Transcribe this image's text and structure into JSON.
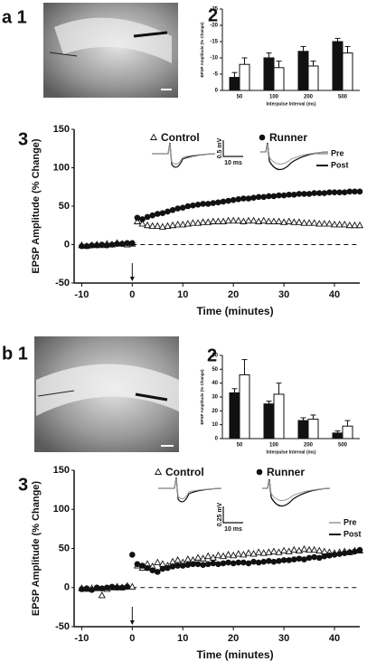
{
  "photos": [
    {
      "label": "a 1"
    },
    {
      "label": "b 1"
    }
  ],
  "chart_data": [
    {
      "type": "bar",
      "panel_label": "2",
      "ylabel": "EPSP Amplitude (% Change)",
      "xlabel": "Interpulse Interval (ms)",
      "categories": [
        "50",
        "100",
        "200",
        "500"
      ],
      "ylim": [
        0,
        -25
      ],
      "yticks": [
        -25,
        -20,
        -15,
        -10,
        -5,
        0
      ],
      "series": [
        {
          "color": "#111111",
          "values": [
            -4,
            -10,
            -12,
            -15
          ],
          "errors": [
            1.5,
            1.5,
            1.5,
            1
          ]
        },
        {
          "color": "#ffffff",
          "values": [
            -8,
            -7,
            -7.5,
            -11.5
          ],
          "errors": [
            2,
            2,
            1.5,
            2
          ]
        }
      ]
    },
    {
      "type": "scatter",
      "panel_label": "3",
      "ylabel": "EPSP Amplitude (% Change)",
      "xlabel": "Time (minutes)",
      "xlim": [
        -11.5,
        45
      ],
      "xticks": [
        -10,
        0,
        10,
        20,
        30,
        40
      ],
      "ylim": [
        -50,
        150
      ],
      "yticks": [
        -50,
        0,
        50,
        100,
        150
      ],
      "hline": 0,
      "arrow_x": 0,
      "inset": {
        "pre": "Pre",
        "post": "Post",
        "scale_y": "0.5 mV",
        "scale_x": "10 ms"
      },
      "x": [
        -10,
        -9,
        -8,
        -7,
        -6,
        -5,
        -4,
        -3,
        -2,
        -1,
        0,
        1,
        2,
        3,
        4,
        5,
        6,
        7,
        8,
        9,
        10,
        11,
        12,
        13,
        14,
        15,
        16,
        17,
        18,
        19,
        20,
        21,
        22,
        23,
        24,
        25,
        26,
        27,
        28,
        29,
        30,
        31,
        32,
        33,
        34,
        35,
        36,
        37,
        38,
        39,
        40,
        41,
        42,
        43,
        44,
        45
      ],
      "series": [
        {
          "name": "Control",
          "marker": "triangle-open",
          "color": "#111111",
          "values": [
            -1,
            -2,
            -1,
            0,
            -1,
            1,
            0,
            2,
            1,
            0,
            1,
            30,
            27,
            25,
            24,
            24,
            23,
            24,
            25,
            26,
            26,
            27,
            28,
            28,
            29,
            29,
            30,
            30,
            30,
            31,
            31,
            31,
            30,
            31,
            31,
            30,
            31,
            30,
            30,
            30,
            29,
            30,
            29,
            29,
            28,
            28,
            28,
            27,
            27,
            27,
            26,
            26,
            26,
            25,
            25,
            25
          ]
        },
        {
          "name": "Runner",
          "marker": "circle",
          "color": "#111111",
          "values": [
            -2,
            -2,
            -1,
            -1,
            0,
            -1,
            0,
            1,
            1,
            2,
            2,
            35,
            33,
            36,
            38,
            40,
            41,
            43,
            45,
            47,
            48,
            50,
            51,
            52,
            53,
            53,
            54,
            55,
            56,
            57,
            58,
            59,
            60,
            60,
            61,
            62,
            62,
            63,
            63,
            64,
            64,
            65,
            65,
            66,
            66,
            66,
            67,
            67,
            67,
            68,
            68,
            68,
            68,
            69,
            69,
            69
          ]
        }
      ]
    },
    {
      "type": "bar",
      "panel_label": "2",
      "ylabel": "EPSP Amplitude (% Change)",
      "xlabel": "Interpulse Interval (ms)",
      "categories": [
        "50",
        "100",
        "200",
        "500"
      ],
      "ylim": [
        0,
        60
      ],
      "yticks": [
        0,
        10,
        20,
        30,
        40,
        50,
        60
      ],
      "series": [
        {
          "color": "#111111",
          "values": [
            33,
            25,
            13,
            4
          ],
          "errors": [
            3,
            2,
            2,
            1.5
          ]
        },
        {
          "color": "#ffffff",
          "values": [
            46,
            32,
            14,
            9
          ],
          "errors": [
            11,
            8,
            3,
            4
          ]
        }
      ]
    },
    {
      "type": "scatter",
      "panel_label": "3",
      "ylabel": "EPSP Amplitude (% Change)",
      "xlabel": "Time (minutes)",
      "xlim": [
        -11.5,
        45
      ],
      "xticks": [
        -10,
        0,
        10,
        20,
        30,
        40
      ],
      "ylim": [
        -50,
        150
      ],
      "yticks": [
        -50,
        0,
        50,
        100,
        150
      ],
      "hline": 0,
      "arrow_x": 0,
      "inset": {
        "pre": "Pre",
        "post": "Post",
        "scale_y": "0.25 mV",
        "scale_x": "10 ms"
      },
      "x": [
        -10,
        -9,
        -8,
        -7,
        -6,
        -5,
        -4,
        -3,
        -2,
        -1,
        0,
        1,
        2,
        3,
        4,
        5,
        6,
        7,
        8,
        9,
        10,
        11,
        12,
        13,
        14,
        15,
        16,
        17,
        18,
        19,
        20,
        21,
        22,
        23,
        24,
        25,
        26,
        27,
        28,
        29,
        30,
        31,
        32,
        33,
        34,
        35,
        36,
        37,
        38,
        39,
        40,
        41,
        42,
        43,
        44,
        45
      ],
      "series": [
        {
          "name": "Control",
          "marker": "triangle-open",
          "color": "#111111",
          "values": [
            -1,
            -2,
            -1,
            -1,
            -10,
            -2,
            0,
            1,
            0,
            2,
            1,
            28,
            25,
            30,
            27,
            32,
            30,
            28,
            33,
            35,
            32,
            36,
            35,
            38,
            37,
            40,
            38,
            41,
            40,
            42,
            41,
            43,
            42,
            44,
            43,
            45,
            44,
            45,
            46,
            45,
            47,
            46,
            48,
            47,
            49,
            48,
            48,
            47,
            46,
            45,
            44,
            45,
            46,
            45,
            47,
            47
          ]
        },
        {
          "name": "Runner",
          "marker": "circle",
          "color": "#111111",
          "values": [
            -2,
            -1,
            -3,
            0,
            -1,
            0,
            1,
            0,
            0,
            1,
            42,
            30,
            28,
            25,
            22,
            20,
            24,
            25,
            27,
            28,
            28,
            29,
            30,
            30,
            29,
            30,
            31,
            30,
            31,
            32,
            31,
            32,
            32,
            31,
            33,
            32,
            33,
            34,
            33,
            34,
            35,
            35,
            36,
            37,
            36,
            38,
            39,
            38,
            40,
            41,
            42,
            43,
            44,
            45,
            46,
            48
          ]
        }
      ]
    }
  ]
}
